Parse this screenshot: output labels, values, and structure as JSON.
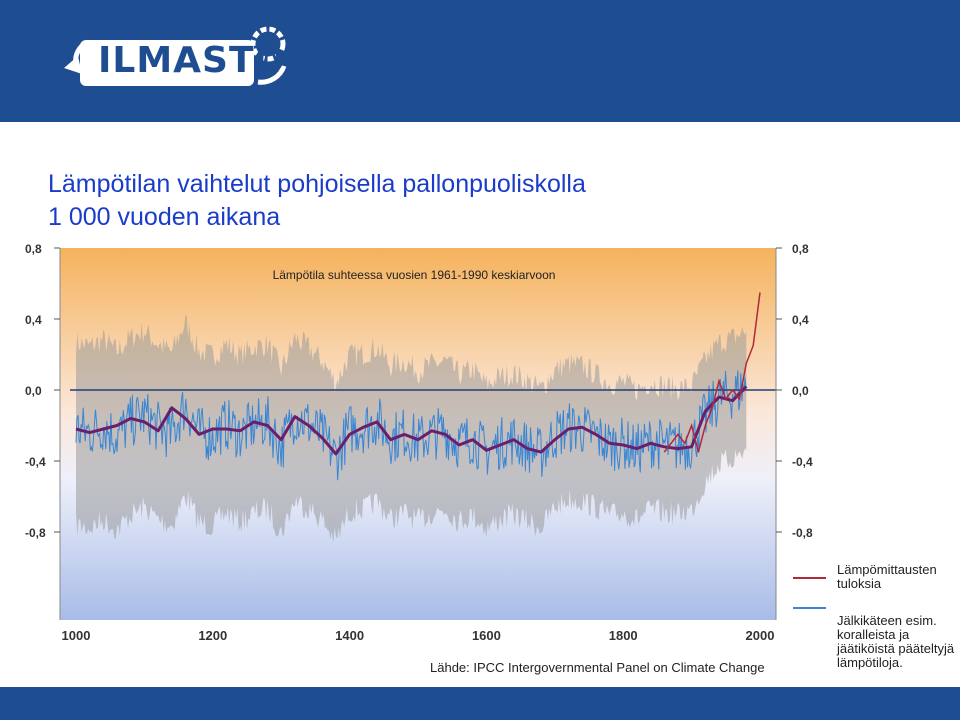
{
  "brand": {
    "logo_text": "ILMASTO",
    "logo_color": "#1f4d92",
    "banner_color": "#1f4d92"
  },
  "title_lines": [
    "Lämpötilan vaihtelut pohjoisella pallonpuoliskolla",
    "1 000 vuoden aikana"
  ],
  "source": "Lähde: IPCC Intergovernmental Panel on Climate Change",
  "chart_data": {
    "type": "line",
    "subtitle": "Lämpötila suhteessa vuosien 1961-1990 keskiarvoon",
    "xlim": [
      1000,
      2000
    ],
    "ylim": [
      -0.8,
      0.8
    ],
    "x_ticks": [
      "1000",
      "1200",
      "1400",
      "1600",
      "1800",
      "2000"
    ],
    "y_ticks": [
      "0,8",
      "0,4",
      "0,0",
      "-0,4",
      "-0,8"
    ],
    "x_tick_values": [
      1000,
      1200,
      1400,
      1600,
      1800,
      2000
    ],
    "y_tick_values": [
      0.8,
      0.4,
      0.0,
      -0.4,
      -0.8
    ],
    "grid": false,
    "legend_position": "right",
    "legend": [
      {
        "label": "Lämpömittausten tuloksia",
        "color": "#b0283c"
      },
      {
        "label": "Jälkikäteen esim. koralleista ja jäätiköistä pääteltyjä lämpötiloja.",
        "color": "#3a86d4"
      }
    ],
    "colors": {
      "smoothed": "#6b1f6b",
      "proxy": "#3a86d4",
      "instrumental": "#b0283c",
      "uncertainty": "#9a9a9a",
      "zero_line": "#1f3d7a"
    },
    "series": [
      {
        "name": "Jälkikäteen esim. koralleista ja jäätiköistä pääteltyjä lämpötiloja.",
        "x": [
          1000,
          1020,
          1040,
          1060,
          1080,
          1100,
          1120,
          1140,
          1160,
          1180,
          1200,
          1220,
          1240,
          1260,
          1280,
          1300,
          1320,
          1340,
          1360,
          1380,
          1400,
          1420,
          1440,
          1460,
          1480,
          1500,
          1520,
          1540,
          1560,
          1580,
          1600,
          1620,
          1640,
          1660,
          1680,
          1700,
          1720,
          1740,
          1760,
          1780,
          1800,
          1820,
          1840,
          1860,
          1880,
          1900,
          1920,
          1940,
          1960,
          1980
        ],
        "y": [
          -0.22,
          -0.24,
          -0.2,
          -0.26,
          -0.18,
          -0.14,
          -0.21,
          -0.25,
          -0.08,
          -0.24,
          -0.26,
          -0.19,
          -0.25,
          -0.2,
          -0.18,
          -0.32,
          -0.14,
          -0.19,
          -0.26,
          -0.38,
          -0.22,
          -0.21,
          -0.17,
          -0.27,
          -0.24,
          -0.29,
          -0.25,
          -0.23,
          -0.3,
          -0.27,
          -0.35,
          -0.3,
          -0.28,
          -0.32,
          -0.36,
          -0.25,
          -0.21,
          -0.22,
          -0.26,
          -0.31,
          -0.3,
          -0.34,
          -0.29,
          -0.31,
          -0.32,
          -0.3,
          -0.15,
          -0.05,
          -0.02,
          0.02
        ]
      },
      {
        "name": "",
        "x": [
          1000,
          1020,
          1040,
          1060,
          1080,
          1100,
          1120,
          1140,
          1160,
          1180,
          1200,
          1220,
          1240,
          1260,
          1280,
          1300,
          1320,
          1340,
          1360,
          1380,
          1400,
          1420,
          1440,
          1460,
          1480,
          1500,
          1520,
          1540,
          1560,
          1580,
          1600,
          1620,
          1640,
          1660,
          1680,
          1700,
          1720,
          1740,
          1760,
          1780,
          1800,
          1820,
          1840,
          1860,
          1880,
          1900,
          1920,
          1940,
          1960,
          1980
        ],
        "y": [
          -0.22,
          -0.24,
          -0.22,
          -0.2,
          -0.16,
          -0.18,
          -0.23,
          -0.1,
          -0.16,
          -0.25,
          -0.22,
          -0.22,
          -0.23,
          -0.18,
          -0.2,
          -0.28,
          -0.15,
          -0.2,
          -0.27,
          -0.36,
          -0.25,
          -0.21,
          -0.18,
          -0.28,
          -0.25,
          -0.28,
          -0.23,
          -0.25,
          -0.31,
          -0.28,
          -0.34,
          -0.31,
          -0.28,
          -0.33,
          -0.35,
          -0.28,
          -0.22,
          -0.21,
          -0.25,
          -0.3,
          -0.31,
          -0.33,
          -0.3,
          -0.32,
          -0.33,
          -0.32,
          -0.12,
          -0.04,
          -0.06,
          0.02
        ]
      },
      {
        "name": "Lämpömittausten tuloksia",
        "x": [
          1860,
          1870,
          1880,
          1890,
          1900,
          1910,
          1920,
          1930,
          1940,
          1950,
          1960,
          1970,
          1980,
          1990,
          2000
        ],
        "y": [
          -0.35,
          -0.3,
          -0.25,
          -0.3,
          -0.2,
          -0.35,
          -0.2,
          -0.1,
          0.05,
          -0.05,
          0.0,
          -0.05,
          0.15,
          0.25,
          0.55
        ]
      }
    ]
  }
}
